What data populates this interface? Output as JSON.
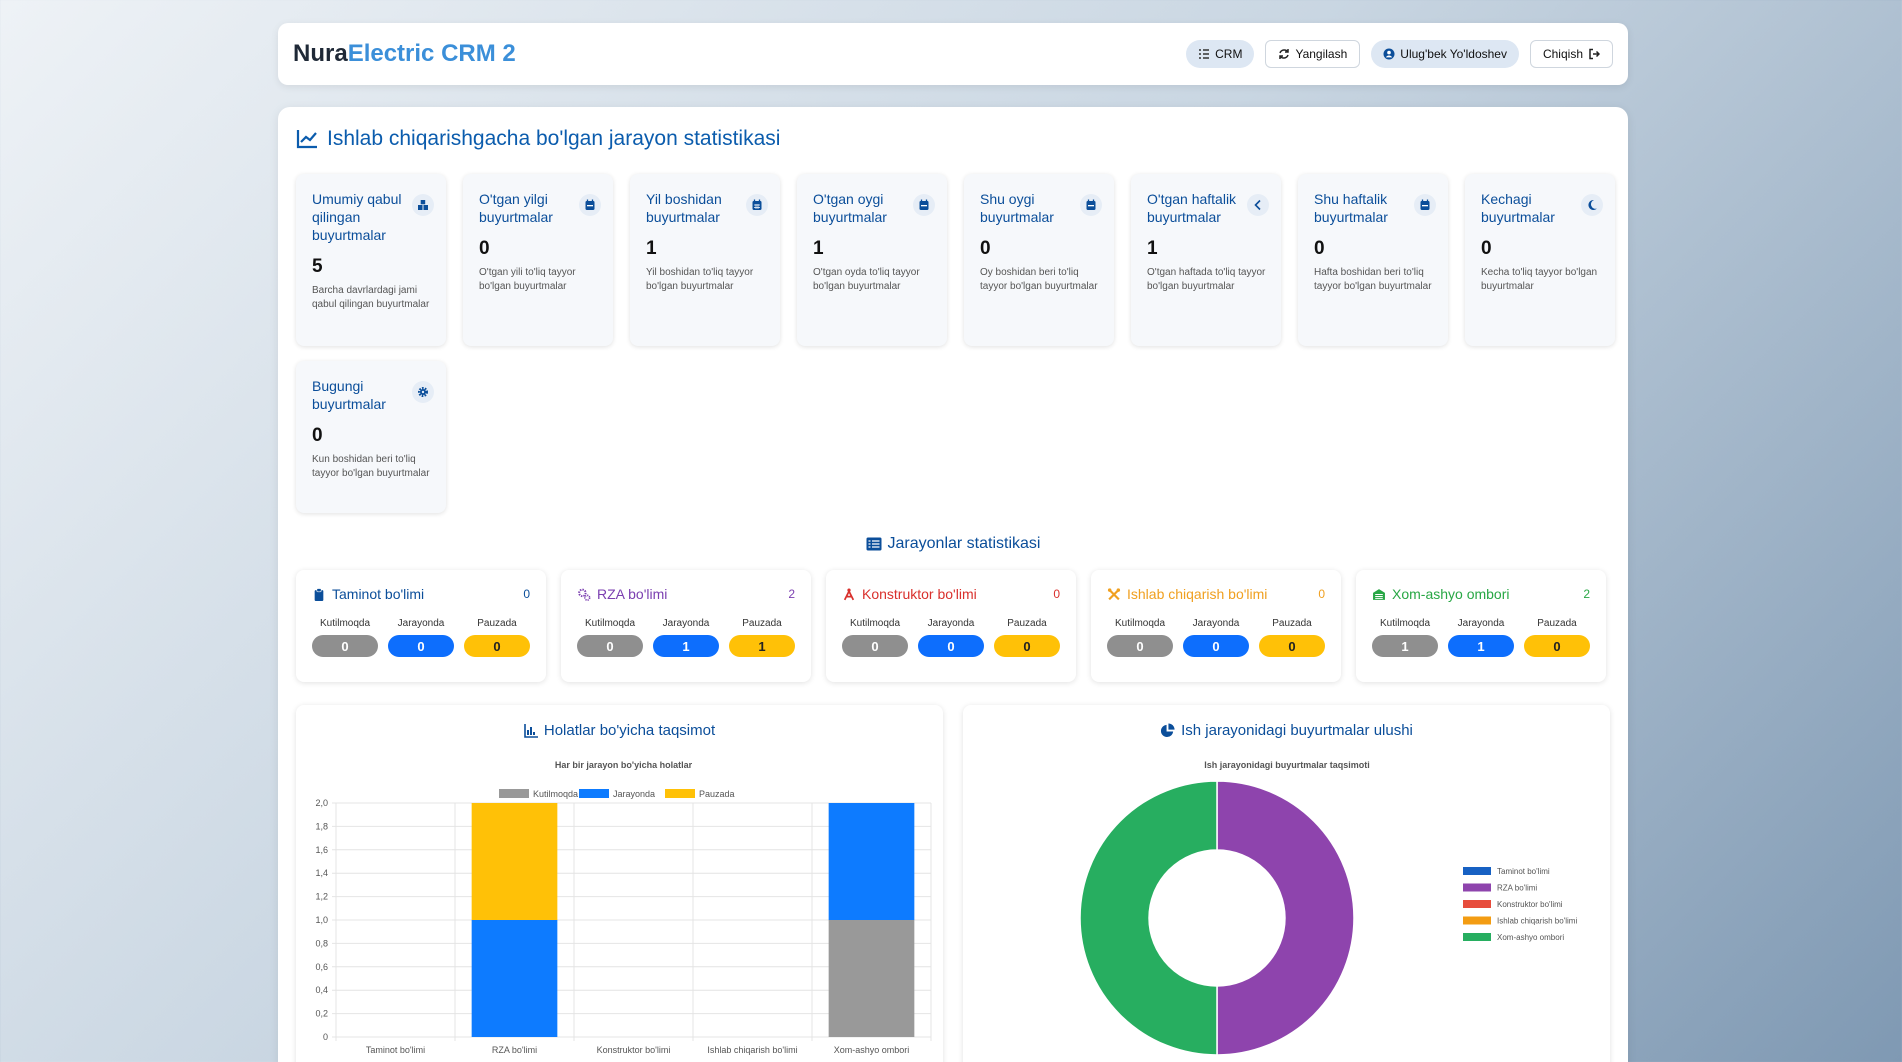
{
  "header": {
    "brand_part1": "Nura",
    "brand_part2": "Electric CRM 2",
    "crm_label": "CRM",
    "refresh_label": "Yangilash",
    "user_label": "Ulug'bek Yo'ldoshev",
    "logout_label": "Chiqish"
  },
  "stats": {
    "title": "Ishlab chiqarishgacha bo'lgan jarayon statistikasi",
    "cards": [
      {
        "title": "Umumiy qabul qilingan buyurtmalar",
        "value": "5",
        "desc": "Barcha davrlardagi jami qabul qilingan buyurtmalar",
        "icon": "boxes-icon"
      },
      {
        "title": "O'tgan yilgi buyurtmalar",
        "value": "0",
        "desc": "O'tgan yili to'liq tayyor bo'lgan buyurtmalar",
        "icon": "calendar-icon"
      },
      {
        "title": "Yil boshidan buyurtmalar",
        "value": "1",
        "desc": "Yil boshidan to'liq tayyor bo'lgan buyurtmalar",
        "icon": "calendar-grid-icon"
      },
      {
        "title": "O'tgan oygi buyurtmalar",
        "value": "1",
        "desc": "O'tgan oyda to'liq tayyor bo'lgan buyurtmalar",
        "icon": "calendar-icon"
      },
      {
        "title": "Shu oygi buyurtmalar",
        "value": "0",
        "desc": "Oy boshidan beri to'liq tayyor bo'lgan buyurtmalar",
        "icon": "calendar-icon"
      },
      {
        "title": "O'tgan haftalik buyurtmalar",
        "value": "1",
        "desc": "O'tgan haftada to'liq tayyor bo'lgan buyurtmalar",
        "icon": "chevron-left-icon"
      },
      {
        "title": "Shu haftalik buyurtmalar",
        "value": "0",
        "desc": "Hafta boshidan beri to'liq tayyor bo'lgan buyurtmalar",
        "icon": "calendar-icon"
      },
      {
        "title": "Kechagi buyurtmalar",
        "value": "0",
        "desc": "Kecha to'liq tayyor bo'lgan buyurtmalar",
        "icon": "moon-icon"
      },
      {
        "title": "Bugungi buyurtmalar",
        "value": "0",
        "desc": "Kun boshidan beri to'liq tayyor bo'lgan buyurtmalar",
        "icon": "gear-icon"
      }
    ]
  },
  "processes": {
    "title": "Jarayonlar statistikasi",
    "col_labels": [
      "Kutilmoqda",
      "Jarayonda",
      "Pauzada"
    ],
    "departments": [
      {
        "name": "Taminot bo'limi",
        "count": "0",
        "color": "#0b4e9a",
        "values": [
          "0",
          "0",
          "0"
        ],
        "icon": "clipboard-icon"
      },
      {
        "name": "RZA bo'limi",
        "count": "2",
        "color": "#7b3fb0",
        "values": [
          "0",
          "1",
          "1"
        ],
        "icon": "gears-icon"
      },
      {
        "name": "Konstruktor bo'limi",
        "count": "0",
        "color": "#d9302c",
        "values": [
          "0",
          "0",
          "0"
        ],
        "icon": "compass-icon"
      },
      {
        "name": "Ishlab chiqarish bo'limi",
        "count": "0",
        "color": "#f0a020",
        "values": [
          "0",
          "0",
          "0"
        ],
        "icon": "tools-icon"
      },
      {
        "name": "Xom-ashyo ombori",
        "count": "2",
        "color": "#28a745",
        "values": [
          "1",
          "1",
          "0"
        ],
        "icon": "warehouse-icon"
      }
    ]
  },
  "bar_panel": {
    "title": "Holatlar bo'yicha taqsimot"
  },
  "pie_panel": {
    "title": "Ish jarayonidagi buyurtmalar ulushi"
  },
  "chart_data": [
    {
      "type": "bar",
      "stacked": true,
      "title": "Har bir jarayon bo'yicha holatlar",
      "categories": [
        "Taminot bo'limi",
        "RZA bo'limi",
        "Konstruktor bo'limi",
        "Ishlab chiqarish bo'limi",
        "Xom-ashyo ombori"
      ],
      "series": [
        {
          "name": "Kutilmoqda",
          "color": "#999999",
          "values": [
            0,
            0,
            0,
            0,
            1
          ]
        },
        {
          "name": "Jarayonda",
          "color": "#0d7bff",
          "values": [
            0,
            1,
            0,
            0,
            1
          ]
        },
        {
          "name": "Pauzada",
          "color": "#ffc107",
          "values": [
            0,
            1,
            0,
            0,
            0
          ]
        }
      ],
      "ylim": [
        0,
        2
      ],
      "yticks": [
        "0",
        "0,2",
        "0,4",
        "0,6",
        "0,8",
        "1,0",
        "1,2",
        "1,4",
        "1,6",
        "1,8",
        "2,0"
      ],
      "legend": "top",
      "grid": true
    },
    {
      "type": "pie",
      "donut": true,
      "title": "Ish jarayonidagi buyurtmalar taqsimoti",
      "labels": [
        "Taminot bo'limi",
        "RZA bo'limi",
        "Konstruktor bo'limi",
        "Ishlab chiqarish bo'limi",
        "Xom-ashyo ombori"
      ],
      "values": [
        0,
        2,
        0,
        0,
        2
      ],
      "colors": [
        "#1761c3",
        "#8e44ad",
        "#e74c3c",
        "#f39c12",
        "#27ae60"
      ],
      "legend": "right"
    }
  ]
}
